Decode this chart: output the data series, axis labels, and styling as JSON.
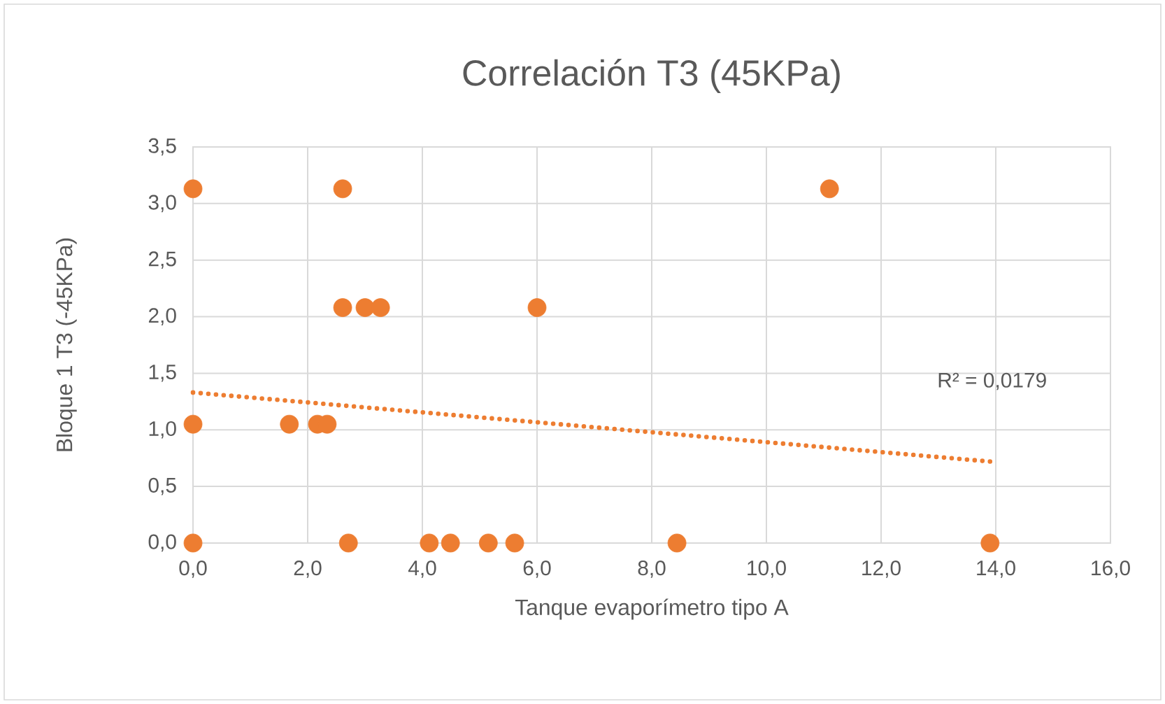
{
  "chart_data": {
    "type": "scatter",
    "title": "Correlación T3 (45KPa)",
    "xlabel": "Tanque evaporímetro tipo A",
    "ylabel": "Bloque 1 T3 (-45KPa)",
    "series": [
      {
        "color": "#ed7d31",
        "marker": "circle",
        "x": [
          0,
          2.61,
          11.1,
          0,
          1.68,
          2.17,
          2.34,
          2.61,
          3.0,
          3.27,
          6.0,
          0,
          2.71,
          4.12,
          4.49,
          5.15,
          5.61,
          8.44,
          13.9
        ],
        "values": [
          3.13,
          3.13,
          3.13,
          1.05,
          1.05,
          1.05,
          1.05,
          2.08,
          2.08,
          2.08,
          2.08,
          0,
          0,
          0,
          0,
          0,
          0,
          0,
          0
        ]
      },
      {
        "type": "line",
        "color": "#ed7d31",
        "marker": "none",
        "line_style": "dotted",
        "x": [
          0,
          13.9
        ],
        "values": [
          1.33,
          0.72
        ]
      }
    ],
    "annotations": [
      "R² = 0,0179"
    ],
    "xlim": [
      0,
      16
    ],
    "ylim": [
      0,
      3.5
    ],
    "xticks": [
      {
        "value": 0,
        "label": "0,0"
      },
      {
        "value": 2,
        "label": "2,0"
      },
      {
        "value": 4,
        "label": "4,0"
      },
      {
        "value": 6,
        "label": "6,0"
      },
      {
        "value": 8,
        "label": "8,0"
      },
      {
        "value": 10,
        "label": "10,0"
      },
      {
        "value": 12,
        "label": "12,0"
      },
      {
        "value": 14,
        "label": "14,0"
      },
      {
        "value": 16,
        "label": "16,0"
      }
    ],
    "yticks": [
      {
        "value": 0,
        "label": "0,0"
      },
      {
        "value": 0.5,
        "label": "0,5"
      },
      {
        "value": 1,
        "label": "1,0"
      },
      {
        "value": 1.5,
        "label": "1,5"
      },
      {
        "value": 2,
        "label": "2,0"
      },
      {
        "value": 2.5,
        "label": "2,5"
      },
      {
        "value": 3,
        "label": "3,0"
      },
      {
        "value": 3.5,
        "label": "3,5"
      }
    ],
    "grid": true
  }
}
